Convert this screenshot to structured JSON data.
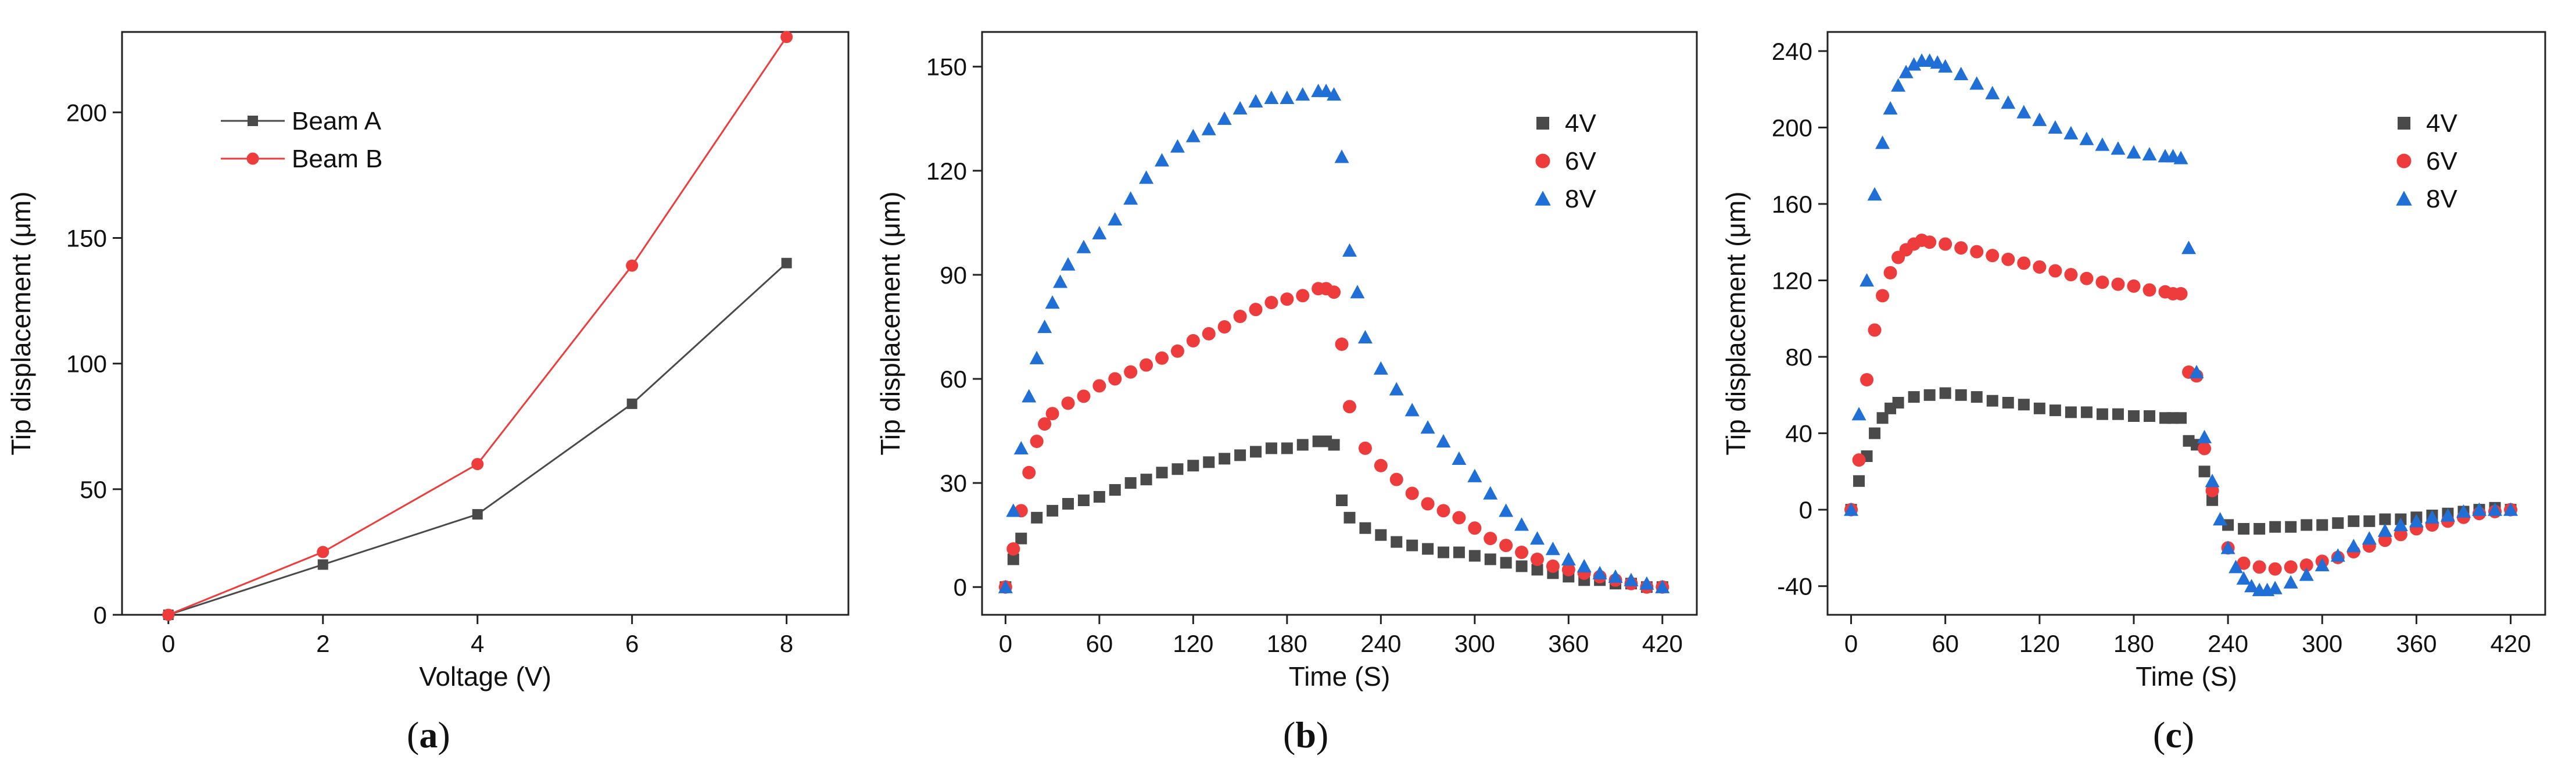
{
  "colors": {
    "black": "#4a4a4a",
    "red": "#ee3b3b",
    "blue": "#1f6fd6"
  },
  "panel_labels": [
    {
      "open": "(",
      "letter": "a",
      "close": ")"
    },
    {
      "open": "(",
      "letter": "b",
      "close": ")"
    },
    {
      "open": "(",
      "letter": "c",
      "close": ")"
    }
  ],
  "chart_data": [
    {
      "type": "line",
      "title": "",
      "xlabel": "Voltage (V)",
      "ylabel": "Tip displacement (μm)",
      "xlim": [
        -0.6,
        8.8
      ],
      "ylim": [
        0,
        232
      ],
      "xticks": [
        0,
        2,
        4,
        6,
        8
      ],
      "yticks": [
        0,
        50,
        100,
        150,
        200
      ],
      "legend_position": "top-left",
      "series": [
        {
          "name": "Beam A",
          "color": "black",
          "marker": "square",
          "x": [
            0,
            2,
            4,
            6,
            8
          ],
          "y": [
            0,
            20,
            40,
            84,
            140
          ]
        },
        {
          "name": "Beam B",
          "color": "red",
          "marker": "circle",
          "x": [
            0,
            2,
            4,
            6,
            8
          ],
          "y": [
            0,
            25,
            60,
            139,
            230
          ]
        }
      ]
    },
    {
      "type": "scatter",
      "title": "",
      "xlabel": "Time (S)",
      "ylabel": "Tip displacement (μm)",
      "xlim": [
        -15,
        442
      ],
      "ylim": [
        -8,
        160
      ],
      "xticks": [
        0,
        60,
        120,
        180,
        240,
        300,
        360,
        420
      ],
      "yticks": [
        0,
        30,
        60,
        90,
        120,
        150
      ],
      "legend_position": "top-right",
      "series": [
        {
          "name": "4V",
          "color": "black",
          "marker": "square",
          "x": [
            0,
            5,
            10,
            20,
            30,
            40,
            50,
            60,
            70,
            80,
            90,
            100,
            110,
            120,
            130,
            140,
            150,
            160,
            170,
            180,
            190,
            200,
            205,
            210,
            215,
            220,
            230,
            240,
            250,
            260,
            270,
            280,
            290,
            300,
            310,
            320,
            330,
            340,
            350,
            360,
            370,
            380,
            390,
            400,
            410,
            420
          ],
          "y": [
            0,
            8,
            14,
            20,
            22,
            24,
            25,
            26,
            28,
            30,
            31,
            33,
            34,
            35,
            36,
            37,
            38,
            39,
            40,
            40,
            41,
            42,
            42,
            41,
            25,
            20,
            17,
            15,
            13,
            12,
            11,
            10,
            10,
            9,
            8,
            7,
            6,
            5,
            4,
            3,
            2,
            2,
            1,
            1,
            0,
            0
          ]
        },
        {
          "name": "6V",
          "color": "red",
          "marker": "circle",
          "x": [
            0,
            5,
            10,
            15,
            20,
            25,
            30,
            40,
            50,
            60,
            70,
            80,
            90,
            100,
            110,
            120,
            130,
            140,
            150,
            160,
            170,
            180,
            190,
            200,
            205,
            210,
            215,
            220,
            230,
            240,
            250,
            260,
            270,
            280,
            290,
            300,
            310,
            320,
            330,
            340,
            350,
            360,
            370,
            380,
            390,
            400,
            410,
            420
          ],
          "y": [
            0,
            11,
            22,
            33,
            42,
            47,
            50,
            53,
            55,
            58,
            60,
            62,
            64,
            66,
            68,
            71,
            73,
            75,
            78,
            80,
            82,
            83,
            84,
            86,
            86,
            85,
            70,
            52,
            40,
            35,
            31,
            27,
            24,
            22,
            20,
            17,
            14,
            12,
            10,
            8,
            6,
            5,
            4,
            3,
            2,
            1,
            0,
            0
          ]
        },
        {
          "name": "8V",
          "color": "blue",
          "marker": "triangle",
          "x": [
            0,
            5,
            10,
            15,
            20,
            25,
            30,
            35,
            40,
            50,
            60,
            70,
            80,
            90,
            100,
            110,
            120,
            130,
            140,
            150,
            160,
            170,
            180,
            190,
            200,
            205,
            210,
            215,
            220,
            225,
            230,
            240,
            250,
            260,
            270,
            280,
            290,
            300,
            310,
            320,
            330,
            340,
            350,
            360,
            370,
            380,
            390,
            400,
            410,
            420
          ],
          "y": [
            0,
            22,
            40,
            55,
            66,
            75,
            82,
            88,
            93,
            98,
            102,
            106,
            112,
            118,
            123,
            127,
            130,
            132,
            135,
            138,
            140,
            141,
            141,
            142,
            143,
            143,
            142,
            124,
            97,
            85,
            72,
            63,
            57,
            51,
            46,
            42,
            37,
            32,
            27,
            22,
            18,
            14,
            11,
            8,
            6,
            4,
            3,
            2,
            1,
            0
          ]
        }
      ]
    },
    {
      "type": "scatter",
      "title": "",
      "xlabel": "Time (S)",
      "ylabel": "Tip displacement (μm)",
      "xlim": [
        -15,
        442
      ],
      "ylim": [
        -55,
        250
      ],
      "xticks": [
        0,
        60,
        120,
        180,
        240,
        300,
        360,
        420
      ],
      "yticks": [
        -40,
        0,
        40,
        80,
        120,
        160,
        200,
        240
      ],
      "legend_position": "top-right",
      "series": [
        {
          "name": "4V",
          "color": "black",
          "marker": "square",
          "x": [
            0,
            5,
            10,
            15,
            20,
            25,
            30,
            40,
            50,
            60,
            70,
            80,
            90,
            100,
            110,
            120,
            130,
            140,
            150,
            160,
            170,
            180,
            190,
            200,
            205,
            210,
            215,
            220,
            225,
            230,
            240,
            250,
            260,
            270,
            280,
            290,
            300,
            310,
            320,
            330,
            340,
            350,
            360,
            370,
            380,
            390,
            400,
            410,
            420
          ],
          "y": [
            0,
            15,
            28,
            40,
            48,
            53,
            56,
            59,
            60,
            61,
            60,
            59,
            57,
            56,
            55,
            53,
            52,
            51,
            51,
            50,
            50,
            49,
            49,
            48,
            48,
            48,
            36,
            34,
            20,
            5,
            -8,
            -10,
            -10,
            -9,
            -9,
            -8,
            -8,
            -7,
            -6,
            -6,
            -5,
            -5,
            -4,
            -3,
            -2,
            -1,
            0,
            1,
            0
          ]
        },
        {
          "name": "6V",
          "color": "red",
          "marker": "circle",
          "x": [
            0,
            5,
            10,
            15,
            20,
            25,
            30,
            35,
            40,
            45,
            50,
            60,
            70,
            80,
            90,
            100,
            110,
            120,
            130,
            140,
            150,
            160,
            170,
            180,
            190,
            200,
            205,
            210,
            215,
            220,
            225,
            230,
            240,
            250,
            260,
            270,
            280,
            290,
            300,
            310,
            320,
            330,
            340,
            350,
            360,
            370,
            380,
            390,
            400,
            410,
            420
          ],
          "y": [
            0,
            26,
            68,
            94,
            112,
            124,
            132,
            136,
            139,
            141,
            140,
            139,
            137,
            135,
            133,
            131,
            129,
            127,
            125,
            123,
            121,
            119,
            118,
            117,
            115,
            114,
            113,
            113,
            72,
            70,
            32,
            10,
            -20,
            -28,
            -30,
            -31,
            -30,
            -29,
            -27,
            -25,
            -22,
            -19,
            -16,
            -13,
            -10,
            -8,
            -6,
            -4,
            -2,
            -1,
            0
          ]
        },
        {
          "name": "8V",
          "color": "blue",
          "marker": "triangle",
          "x": [
            0,
            5,
            10,
            15,
            20,
            25,
            30,
            35,
            40,
            45,
            50,
            55,
            60,
            70,
            80,
            90,
            100,
            110,
            120,
            130,
            140,
            150,
            160,
            170,
            180,
            190,
            200,
            205,
            210,
            215,
            220,
            225,
            230,
            235,
            240,
            245,
            250,
            255,
            260,
            265,
            270,
            280,
            290,
            300,
            310,
            320,
            330,
            340,
            350,
            360,
            370,
            380,
            390,
            400,
            410,
            420
          ],
          "y": [
            0,
            50,
            120,
            165,
            192,
            210,
            222,
            229,
            233,
            235,
            235,
            234,
            232,
            228,
            223,
            218,
            213,
            208,
            204,
            200,
            197,
            194,
            191,
            189,
            187,
            186,
            185,
            185,
            184,
            137,
            72,
            38,
            15,
            -5,
            -20,
            -30,
            -36,
            -40,
            -42,
            -42,
            -41,
            -38,
            -34,
            -29,
            -24,
            -19,
            -15,
            -11,
            -8,
            -6,
            -4,
            -3,
            -1,
            0,
            0,
            0
          ]
        }
      ]
    }
  ]
}
